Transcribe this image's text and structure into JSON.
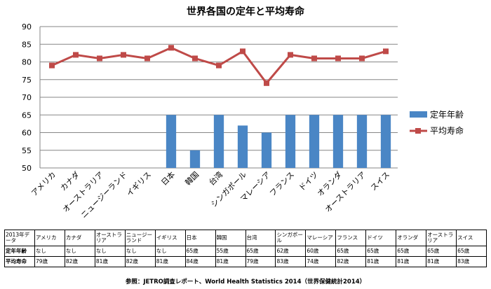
{
  "chart_data": {
    "type": "bar",
    "title": "世界各国の定年と平均寿命",
    "categories": [
      "アメリカ",
      "カナダ",
      "オーストラリア",
      "ニュージーランド",
      "イギリス",
      "日本",
      "韓国",
      "台湾",
      "シンガポール",
      "マレーシア",
      "フランス",
      "ドイツ",
      "オランダ",
      "オーストラリア",
      "スイス"
    ],
    "series": [
      {
        "name": "定年年齢",
        "kind": "bar",
        "color": "#4a86c5",
        "values": [
          null,
          null,
          null,
          null,
          null,
          65,
          55,
          65,
          62,
          60,
          65,
          65,
          65,
          65,
          65
        ]
      },
      {
        "name": "平均寿命",
        "kind": "line",
        "color": "#bf4a48",
        "values": [
          79,
          82,
          81,
          82,
          81,
          84,
          81,
          79,
          83,
          74,
          82,
          81,
          81,
          81,
          83
        ]
      }
    ],
    "ylim": [
      50,
      90
    ],
    "yticks": [
      50,
      55,
      60,
      65,
      70,
      75,
      80,
      85,
      90
    ],
    "grid": true,
    "legend": "right"
  },
  "table": {
    "header": [
      "2013年データ",
      "アメリカ",
      "カナダ",
      "オーストラリア",
      "ニュージーランド",
      "イギリス",
      "日本",
      "韓国",
      "台湾",
      "シンガポール",
      "マレーシア",
      "フランス",
      "ドイツ",
      "オランダ",
      "オーストラリア",
      "スイス"
    ],
    "rows": [
      [
        "定年年齢",
        "なし",
        "なし",
        "なし",
        "なし",
        "なし",
        "65歳",
        "55歳",
        "65歳",
        "62歳",
        "60歳",
        "65歳",
        "65歳",
        "65歳",
        "65歳",
        "65歳"
      ],
      [
        "平均寿命",
        "79歳",
        "82歳",
        "81歳",
        "82歳",
        "81歳",
        "84歳",
        "81歳",
        "79歳",
        "83歳",
        "74歳",
        "82歳",
        "81歳",
        "81歳",
        "81歳",
        "83歳"
      ]
    ]
  },
  "source": "参照：JETRO調査レポート、World Health Statistics 2014（世界保健統計2014）"
}
